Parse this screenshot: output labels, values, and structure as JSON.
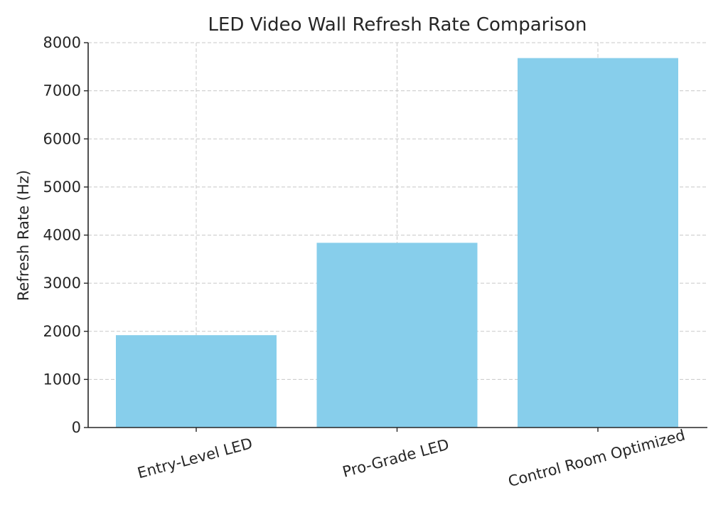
{
  "chart_data": {
    "type": "bar",
    "title": "LED Video Wall Refresh Rate Comparison",
    "xlabel": "",
    "ylabel": "Refresh Rate (Hz)",
    "categories": [
      "Entry-Level LED",
      "Pro-Grade LED",
      "Control Room Optimized"
    ],
    "values": [
      1920,
      3840,
      7680
    ],
    "ylim": [
      0,
      8000
    ],
    "yticks": [
      "0",
      "1000",
      "2000",
      "3000",
      "4000",
      "5000",
      "6000",
      "7000",
      "8000"
    ],
    "grid": true,
    "bar_color": "#87ceeb",
    "x_tick_rotation_deg": 15
  }
}
